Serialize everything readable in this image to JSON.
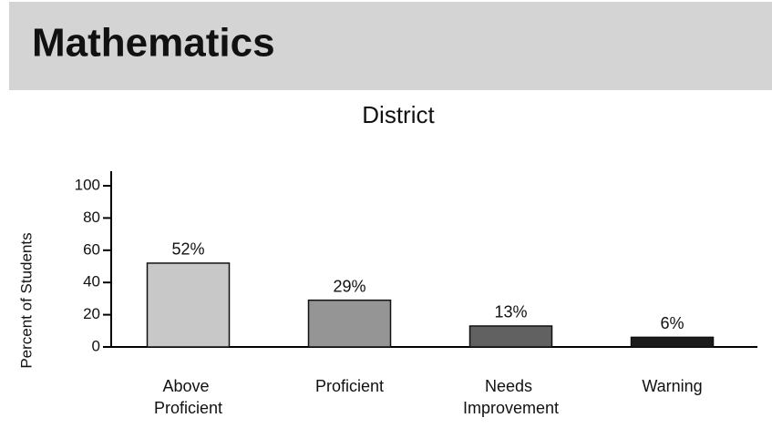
{
  "header": {
    "title": "Mathematics"
  },
  "chart_data": {
    "type": "bar",
    "title": "District",
    "y_label": "Percent of Students",
    "categories": [
      "Above Proficient",
      "Proficient",
      "Needs Improvement",
      "Warning"
    ],
    "values": [
      52,
      29,
      13,
      6
    ],
    "value_labels": [
      "52%",
      "29%",
      "13%",
      "6%"
    ],
    "colors": [
      "#c8c8c8",
      "#959595",
      "#616161",
      "#1c1c1c"
    ],
    "ylim": [
      0,
      100
    ],
    "yticks": [
      0,
      20,
      40,
      60,
      80,
      100
    ],
    "grid": false
  }
}
